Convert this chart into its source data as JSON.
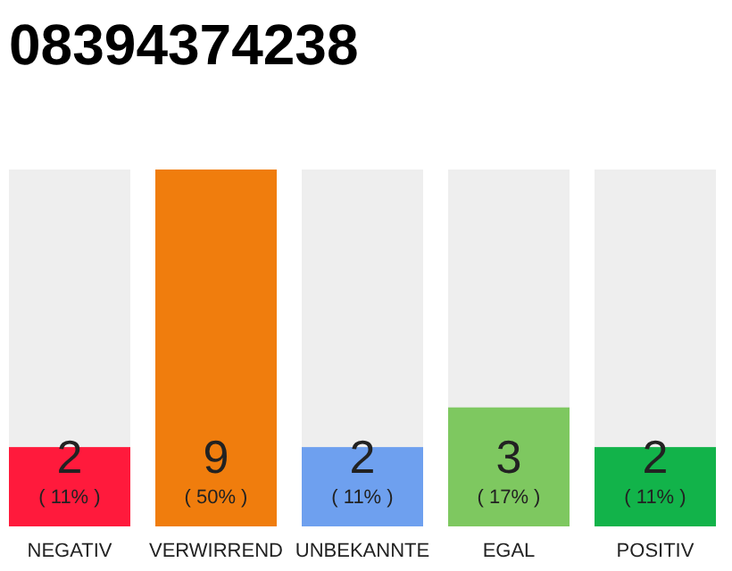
{
  "chart_data": {
    "type": "bar",
    "title": "08394374238",
    "categories": [
      "NEGATIV",
      "VERWIRREND",
      "UNBEKANNTE",
      "EGAL",
      "POSITIV"
    ],
    "values": [
      2,
      9,
      2,
      3,
      2
    ],
    "colors": [
      "#ff1a3c",
      "#f07d0d",
      "#6ea0ef",
      "#7ec860",
      "#12b34a"
    ],
    "data_labels": true,
    "annotations": [
      "( 11% )",
      "( 50% )",
      "( 11% )",
      "( 17% )",
      "( 11% )"
    ]
  }
}
